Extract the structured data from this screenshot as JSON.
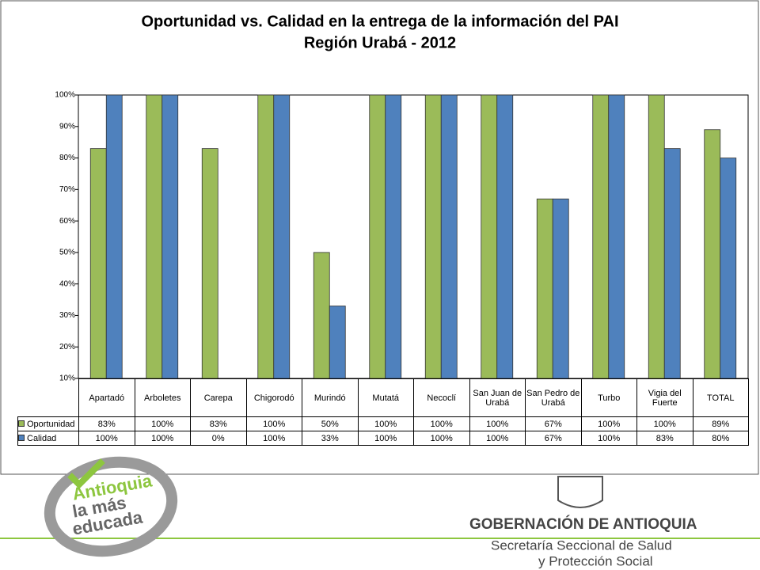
{
  "chart_data": {
    "type": "bar",
    "title": "Oportunidad vs. Calidad en la entrega de la información del PAI",
    "subtitle": "Región Urabá - 2012",
    "categories": [
      "Apartadó",
      "Arboletes",
      "Carepa",
      "Chigorodó",
      "Murindó",
      "Mutatá",
      "Necoclí",
      "San Juan de Urabá",
      "San Pedro de Urabá",
      "Turbo",
      "Vigia del Fuerte",
      "TOTAL"
    ],
    "series": [
      {
        "name": "Oportunidad",
        "color": "#9bbb59",
        "values": [
          83,
          100,
          83,
          100,
          50,
          100,
          100,
          100,
          67,
          100,
          100,
          89
        ],
        "value_labels": [
          "83%",
          "100%",
          "83%",
          "100%",
          "50%",
          "100%",
          "100%",
          "100%",
          "67%",
          "100%",
          "100%",
          "89%"
        ]
      },
      {
        "name": "Calidad",
        "color": "#4f81bd",
        "values": [
          100,
          100,
          0,
          100,
          33,
          100,
          100,
          100,
          67,
          100,
          83,
          80
        ],
        "value_labels": [
          "100%",
          "100%",
          "0%",
          "100%",
          "33%",
          "100%",
          "100%",
          "100%",
          "67%",
          "100%",
          "83%",
          "80%"
        ]
      }
    ],
    "ylim": [
      10,
      100
    ],
    "yticks": [
      {
        "value": 10,
        "label": "10%"
      },
      {
        "value": 20,
        "label": "20%"
      },
      {
        "value": 30,
        "label": "30%"
      },
      {
        "value": 40,
        "label": "40%"
      },
      {
        "value": 50,
        "label": "50%"
      },
      {
        "value": 60,
        "label": "60%"
      },
      {
        "value": 70,
        "label": "70%"
      },
      {
        "value": 80,
        "label": "80%"
      },
      {
        "value": 90,
        "label": "90%"
      },
      {
        "value": 100,
        "label": "100%"
      }
    ],
    "grid": false
  },
  "footer": {
    "slogan": [
      "Antioquia",
      "la más",
      "educada"
    ],
    "organization": "GOBERNACIÓN DE ANTIOQUIA",
    "department": [
      "Secretaría Seccional de Salud",
      "y Protección Social"
    ]
  }
}
